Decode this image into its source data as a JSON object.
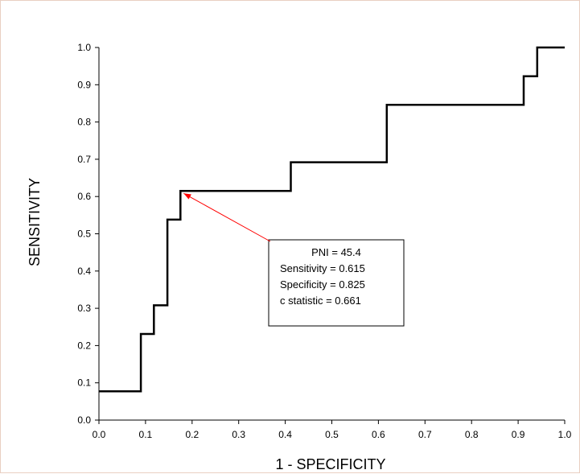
{
  "chart_data": {
    "type": "line",
    "step": true,
    "title": "",
    "xlabel": "1 - SPECIFICITY",
    "ylabel": "SENSITIVITY",
    "xlim": [
      0,
      1
    ],
    "ylim": [
      0,
      1
    ],
    "xticks": [
      "0.0",
      "0.1",
      "0.2",
      "0.3",
      "0.4",
      "0.5",
      "0.6",
      "0.7",
      "0.8",
      "0.9",
      "1.0"
    ],
    "yticks": [
      "0.0",
      "0.1",
      "0.2",
      "0.3",
      "0.4",
      "0.5",
      "0.6",
      "0.7",
      "0.8",
      "0.9",
      "1.0"
    ],
    "grid": false,
    "line_color": "#000000",
    "arrow_color": "#ff0000",
    "series": [
      {
        "points": [
          [
            0.0,
            0.077
          ],
          [
            0.09,
            0.077
          ],
          [
            0.09,
            0.231
          ],
          [
            0.118,
            0.231
          ],
          [
            0.118,
            0.308
          ],
          [
            0.147,
            0.308
          ],
          [
            0.147,
            0.538
          ],
          [
            0.175,
            0.538
          ],
          [
            0.175,
            0.615
          ],
          [
            0.412,
            0.615
          ],
          [
            0.412,
            0.692
          ],
          [
            0.618,
            0.692
          ],
          [
            0.618,
            0.846
          ],
          [
            0.912,
            0.846
          ],
          [
            0.912,
            0.923
          ],
          [
            0.941,
            0.923
          ],
          [
            0.941,
            1.0
          ],
          [
            1.0,
            1.0
          ]
        ]
      }
    ],
    "annotation": {
      "lines": [
        "PNI = 45.4",
        "Sensitivity = 0.615",
        "Specificity = 0.825",
        "c statistic = 0.661"
      ],
      "target": [
        0.175,
        0.615
      ]
    }
  }
}
